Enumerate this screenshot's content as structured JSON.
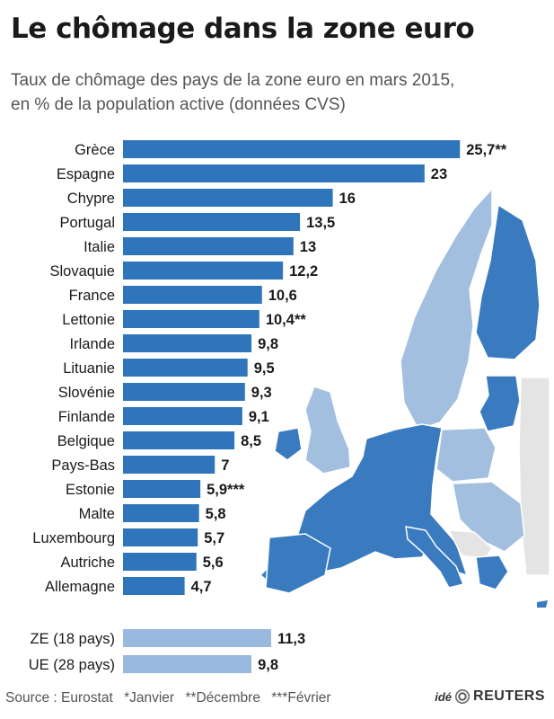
{
  "title": "Le chômage dans la zone euro",
  "subtitle_line1": "Taux de chômage des pays de la zone euro en mars 2015,",
  "subtitle_line2": "en % de la population active (données CVS)",
  "colors": {
    "bar": "#2e75bb",
    "bar_aggregate": "#99b9de",
    "map_dark": "#3a7bc0",
    "map_light": "#a3bfe0",
    "map_grey": "#e4e4e4"
  },
  "chart_data": [
    {
      "type": "bar",
      "orientation": "horizontal",
      "categories": [
        "Grèce",
        "Espagne",
        "Chypre",
        "Portugal",
        "Italie",
        "Slovaquie",
        "France",
        "Lettonie",
        "Irlande",
        "Lituanie",
        "Slovénie",
        "Finlande",
        "Belgique",
        "Pays-Bas",
        "Estonie",
        "Malte",
        "Luxembourg",
        "Autriche",
        "Allemagne"
      ],
      "values": [
        25.7,
        23,
        16,
        13.5,
        13,
        12.2,
        10.6,
        10.4,
        9.8,
        9.5,
        9.3,
        9.1,
        8.5,
        7,
        5.9,
        5.8,
        5.7,
        5.6,
        4.7
      ],
      "value_labels": [
        "25,7**",
        "23",
        "16",
        "13,5",
        "13",
        "12,2",
        "10,6",
        "10,4**",
        "9,8",
        "9,5",
        "9,3",
        "9,1",
        "8,5",
        "7",
        "5,9***",
        "5,8",
        "5,7",
        "5,6",
        "4,7"
      ]
    },
    {
      "type": "bar",
      "orientation": "horizontal",
      "categories": [
        "ZE (18 pays)",
        "UE (28 pays)"
      ],
      "values": [
        11.3,
        9.8
      ],
      "value_labels": [
        "11,3",
        "9,8"
      ]
    }
  ],
  "footer": {
    "source": "Source : Eurostat",
    "note1": "*Janvier",
    "note2": "**Décembre",
    "note3": "***Février"
  },
  "logo": {
    "ide": "idé",
    "reuters": "REUTERS"
  }
}
